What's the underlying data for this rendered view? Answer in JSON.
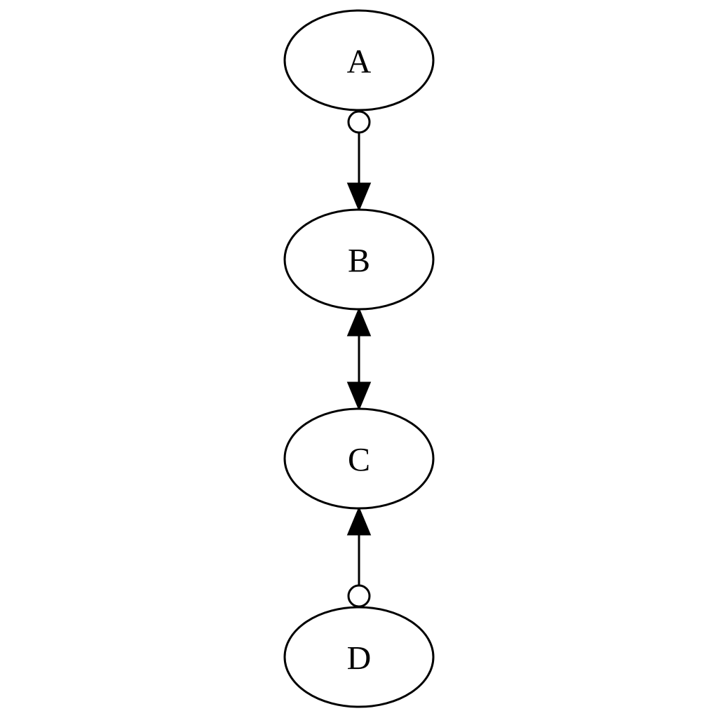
{
  "nodes": [
    {
      "id": "A",
      "label": "A"
    },
    {
      "id": "B",
      "label": "B"
    },
    {
      "id": "C",
      "label": "C"
    },
    {
      "id": "D",
      "label": "D"
    }
  ],
  "edges": [
    {
      "from": "A",
      "to": "B",
      "tail": "odot",
      "head": "normal"
    },
    {
      "from": "B",
      "to": "C",
      "tail": "normal",
      "head": "normal"
    },
    {
      "from": "D",
      "to": "C",
      "tail": "odot",
      "head": "normal"
    }
  ]
}
